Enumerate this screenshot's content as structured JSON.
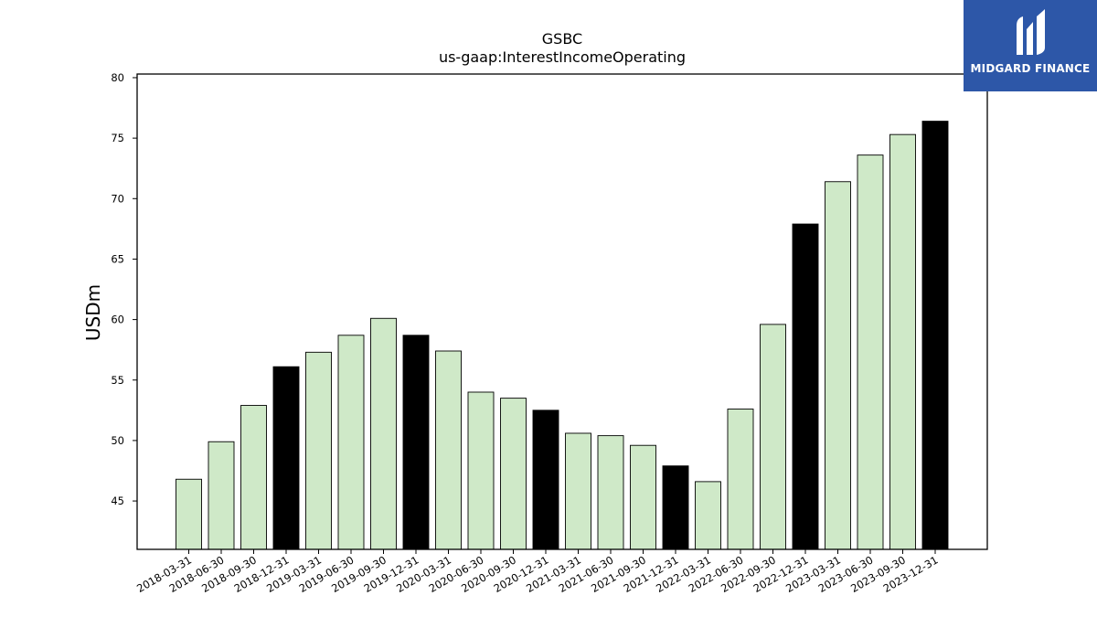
{
  "chart_data": {
    "type": "bar",
    "title": "GSBC",
    "subtitle": "us-gaap:InterestIncomeOperating",
    "xlabel": "",
    "ylabel": "USDm",
    "ylim": [
      41,
      80.3
    ],
    "yticks": [
      45,
      50,
      55,
      60,
      65,
      70,
      75,
      80
    ],
    "grid": false,
    "categories": [
      "2018-03-31",
      "2018-06-30",
      "2018-09-30",
      "2018-12-31",
      "2019-03-31",
      "2019-06-30",
      "2019-09-30",
      "2019-12-31",
      "2020-03-31",
      "2020-06-30",
      "2020-09-30",
      "2020-12-31",
      "2021-03-31",
      "2021-06-30",
      "2021-09-30",
      "2021-12-31",
      "2022-03-31",
      "2022-06-30",
      "2022-09-30",
      "2022-12-31",
      "2023-03-31",
      "2023-06-30",
      "2023-09-30",
      "2023-12-31"
    ],
    "values": [
      46.8,
      49.9,
      52.9,
      56.1,
      57.3,
      58.7,
      60.1,
      58.7,
      57.4,
      54.0,
      53.5,
      52.5,
      50.6,
      50.4,
      49.6,
      47.9,
      46.6,
      52.6,
      59.6,
      67.9,
      71.4,
      73.6,
      75.3,
      76.4
    ],
    "colors": {
      "quarter": "#cfe9c8",
      "year_end": "#000000",
      "edge": "#000000"
    },
    "highlight_year_end": [
      false,
      false,
      false,
      true,
      false,
      false,
      false,
      true,
      false,
      false,
      false,
      true,
      false,
      false,
      false,
      true,
      false,
      false,
      false,
      true,
      false,
      false,
      false,
      true
    ]
  },
  "logo": {
    "text": "MIDGARD FINANCE",
    "background": "#2d57a8"
  }
}
